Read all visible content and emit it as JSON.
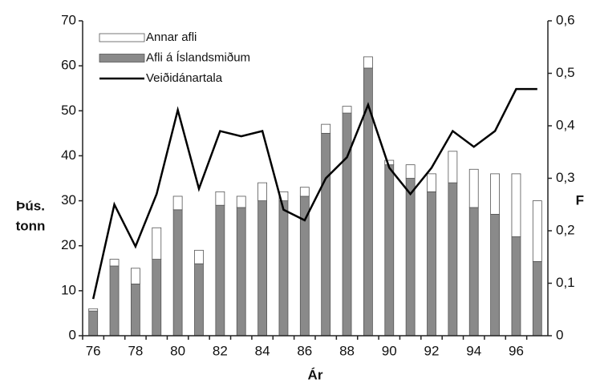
{
  "chart_data": {
    "type": "bar",
    "xlabel": "Ár",
    "ylabel": [
      "Þús.",
      "tonn"
    ],
    "y2label": "F",
    "categories": [
      "76",
      null,
      "78",
      null,
      "80",
      null,
      "82",
      null,
      "84",
      null,
      "86",
      null,
      "88",
      null,
      "90",
      null,
      "92",
      null,
      "94",
      null,
      "96",
      null
    ],
    "series": [
      {
        "name": "Annar afli",
        "type": "bar",
        "color": "#ffffff",
        "values": [
          0.5,
          1.5,
          3.5,
          7,
          3,
          3,
          3,
          2.5,
          4,
          2,
          2,
          2,
          1.5,
          2.5,
          1,
          3,
          4,
          7,
          8.5,
          9,
          14,
          13.5
        ]
      },
      {
        "name": "Afli á Íslandsmiðum",
        "type": "bar",
        "color": "#8a8a8a",
        "values": [
          5.5,
          15.5,
          11.5,
          17,
          28,
          16,
          29,
          28.5,
          30,
          30,
          31,
          45,
          49.5,
          59.5,
          38,
          35,
          32,
          34,
          28.5,
          27,
          22,
          16.5
        ]
      },
      {
        "name": "Veiðidánartala",
        "type": "line",
        "axis": "y2",
        "color": "#000000",
        "values": [
          0.07,
          0.25,
          0.17,
          0.27,
          0.43,
          0.28,
          0.39,
          0.38,
          0.39,
          0.24,
          0.22,
          0.3,
          0.34,
          0.44,
          0.32,
          0.27,
          0.32,
          0.39,
          0.36,
          0.39,
          0.47,
          0.47
        ]
      }
    ],
    "ylim": [
      0,
      70
    ],
    "yticks": [
      0,
      10,
      20,
      30,
      40,
      50,
      60,
      70
    ],
    "y2lim": [
      0,
      0.6
    ],
    "y2ticks": [
      0,
      {
        "value": 0.1,
        "label": "0,1"
      },
      {
        "value": 0.2,
        "label": "0,2"
      },
      {
        "value": 0.3,
        "label": "0,3"
      },
      {
        "value": 0.4,
        "label": "0,4"
      },
      {
        "value": 0.5,
        "label": "0,5"
      },
      {
        "value": 0.6,
        "label": "0,6"
      }
    ],
    "legend": "upper left"
  }
}
